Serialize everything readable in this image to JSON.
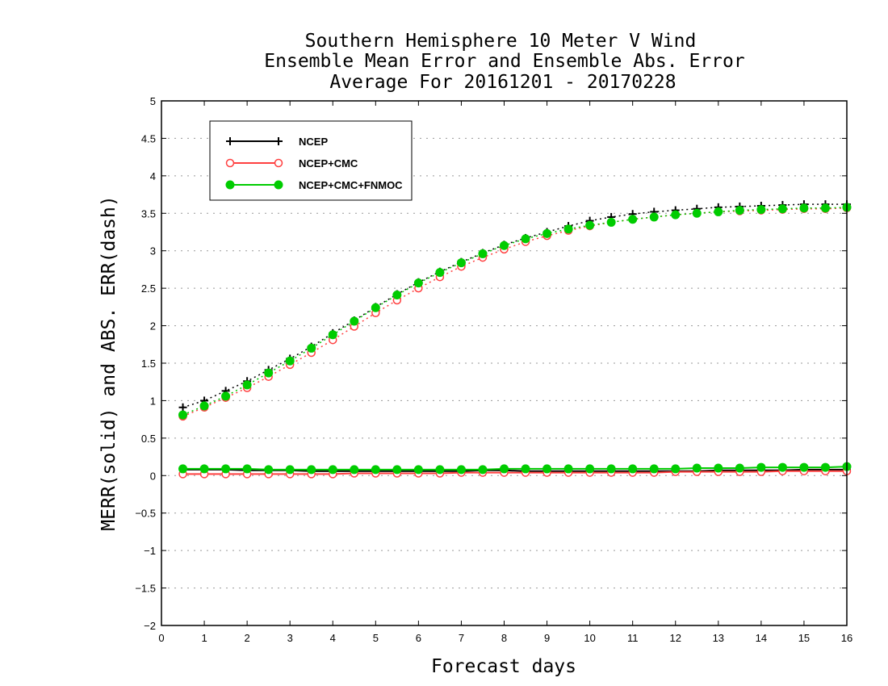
{
  "chart_data": {
    "type": "line",
    "title_lines": [
      "Southern Hemisphere 10 Meter V Wind",
      "Ensemble Mean Error and Ensemble Abs. Error",
      "Average For 20161201 - 20170228"
    ],
    "xlabel": "Forecast days",
    "ylabel": "MERR(solid) and ABS. ERR(dash)",
    "xlim": [
      0,
      16
    ],
    "ylim": [
      -2,
      5
    ],
    "xticks": [
      "0",
      "1",
      "2",
      "3",
      "4",
      "5",
      "6",
      "7",
      "8",
      "9",
      "10",
      "11",
      "12",
      "13",
      "14",
      "15",
      "16"
    ],
    "yticks": [
      "−2",
      "−1.5",
      "−1",
      "−0.5",
      "0",
      "0.5",
      "1",
      "1.5",
      "2",
      "2.5",
      "3",
      "3.5",
      "4",
      "4.5",
      "5"
    ],
    "grid": "horizontal-dotted",
    "legend_position": "top-left",
    "x": [
      0.5,
      1,
      1.5,
      2,
      2.5,
      3,
      3.5,
      4,
      4.5,
      5,
      5.5,
      6,
      6.5,
      7,
      7.5,
      8,
      8.5,
      9,
      9.5,
      10,
      10.5,
      11,
      11.5,
      12,
      12.5,
      13,
      13.5,
      14,
      14.5,
      15,
      15.5,
      16
    ],
    "series": [
      {
        "name": "NCEP",
        "color": "#000000",
        "marker": "plus",
        "merr": [
          0.08,
          0.08,
          0.08,
          0.07,
          0.07,
          0.07,
          0.06,
          0.06,
          0.06,
          0.06,
          0.06,
          0.06,
          0.06,
          0.06,
          0.07,
          0.07,
          0.06,
          0.06,
          0.06,
          0.06,
          0.06,
          0.06,
          0.06,
          0.06,
          0.06,
          0.07,
          0.07,
          0.07,
          0.07,
          0.08,
          0.08,
          0.08
        ],
        "abs_err": [
          0.91,
          1.0,
          1.13,
          1.26,
          1.41,
          1.56,
          1.72,
          1.9,
          2.07,
          2.25,
          2.42,
          2.58,
          2.72,
          2.85,
          2.97,
          3.08,
          3.17,
          3.25,
          3.33,
          3.4,
          3.45,
          3.49,
          3.52,
          3.54,
          3.56,
          3.58,
          3.59,
          3.6,
          3.61,
          3.62,
          3.62,
          3.62
        ]
      },
      {
        "name": "NCEP+CMC",
        "color": "#ff4040",
        "marker": "open-circle",
        "merr": [
          0.02,
          0.02,
          0.02,
          0.02,
          0.02,
          0.02,
          0.02,
          0.02,
          0.03,
          0.03,
          0.03,
          0.03,
          0.03,
          0.04,
          0.04,
          0.04,
          0.04,
          0.04,
          0.04,
          0.04,
          0.04,
          0.04,
          0.04,
          0.05,
          0.05,
          0.05,
          0.05,
          0.05,
          0.06,
          0.06,
          0.06,
          0.06
        ],
        "abs_err": [
          0.79,
          0.91,
          1.04,
          1.17,
          1.32,
          1.48,
          1.64,
          1.81,
          1.99,
          2.17,
          2.34,
          2.5,
          2.65,
          2.79,
          2.91,
          3.02,
          3.12,
          3.2,
          3.27,
          3.33,
          3.38,
          3.42,
          3.45,
          3.48,
          3.5,
          3.52,
          3.53,
          3.54,
          3.55,
          3.56,
          3.56,
          3.57
        ]
      },
      {
        "name": "NCEP+CMC+FNMOC",
        "color": "#00cc00",
        "marker": "filled-circle",
        "merr": [
          0.09,
          0.09,
          0.09,
          0.09,
          0.08,
          0.08,
          0.08,
          0.08,
          0.08,
          0.08,
          0.08,
          0.08,
          0.08,
          0.08,
          0.08,
          0.09,
          0.09,
          0.09,
          0.09,
          0.09,
          0.09,
          0.09,
          0.09,
          0.09,
          0.1,
          0.1,
          0.1,
          0.11,
          0.11,
          0.11,
          0.11,
          0.12
        ],
        "abs_err": [
          0.81,
          0.93,
          1.06,
          1.21,
          1.37,
          1.53,
          1.7,
          1.88,
          2.06,
          2.24,
          2.41,
          2.57,
          2.71,
          2.84,
          2.96,
          3.07,
          3.16,
          3.23,
          3.29,
          3.34,
          3.38,
          3.42,
          3.45,
          3.48,
          3.5,
          3.52,
          3.54,
          3.55,
          3.56,
          3.57,
          3.57,
          3.58
        ]
      }
    ]
  }
}
